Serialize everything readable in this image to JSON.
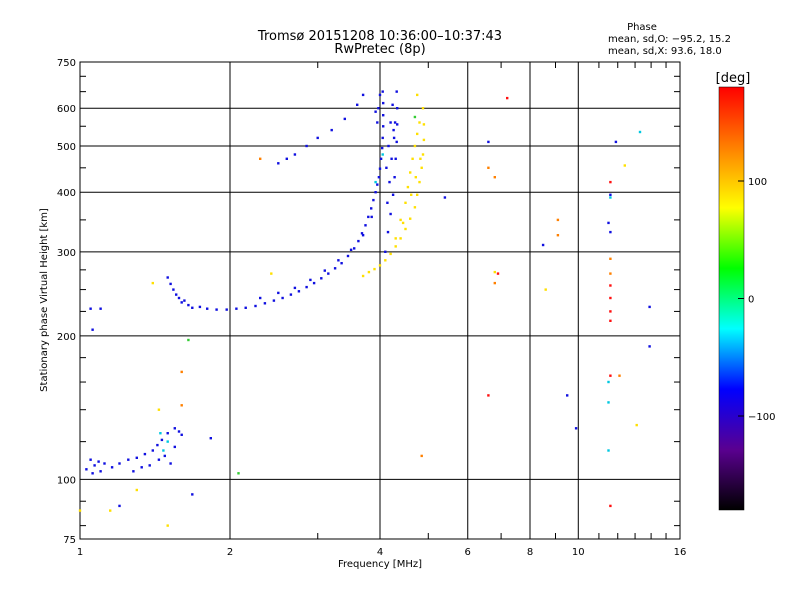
{
  "chart_data": {
    "type": "scatter",
    "title": "Tromsø 20151208 10:36:00–10:37:43",
    "subtitle": "RwPretec (8p)",
    "xlabel": "Frequency [MHz]",
    "ylabel": "Stationary phase Virtual Height [km]",
    "x_scale": "log",
    "y_scale": "log",
    "xlim": [
      1,
      16
    ],
    "ylim": [
      75,
      750
    ],
    "x_ticks": [
      1,
      2,
      4,
      6,
      8,
      10,
      16
    ],
    "x_tick_labels": [
      "1",
      "2",
      "4",
      "6",
      "8",
      "10",
      "16"
    ],
    "y_ticks": [
      75,
      100,
      200,
      300,
      400,
      500,
      600,
      750
    ],
    "y_tick_labels": [
      "75",
      "100",
      "200",
      "300",
      "400",
      "500",
      "600",
      "750"
    ],
    "grid": true,
    "phase_stats": {
      "heading": "Phase",
      "line_o": "mean, sd,O: −95.2, 15.2",
      "line_x": "mean, sd,X:  93.6, 18.0"
    },
    "colorbar": {
      "label": "[deg]",
      "range": [
        -180,
        180
      ],
      "ticks": [
        100,
        0,
        -100
      ],
      "tick_labels": [
        "100",
        "0",
        "−100"
      ],
      "colors": [
        "#000000",
        "#5a0090",
        "#0000ff",
        "#00ffff",
        "#00ff00",
        "#ffff00",
        "#ff8000",
        "#ff0000"
      ]
    },
    "series": [
      {
        "color": "#1010e0",
        "points": [
          [
            1.03,
            105
          ],
          [
            1.05,
            110
          ],
          [
            1.07,
            107
          ],
          [
            1.09,
            109
          ],
          [
            1.12,
            108
          ],
          [
            1.16,
            106
          ],
          [
            1.2,
            108
          ],
          [
            1.25,
            110
          ],
          [
            1.3,
            111
          ],
          [
            1.35,
            113
          ],
          [
            1.4,
            115
          ],
          [
            1.43,
            118
          ],
          [
            1.46,
            121
          ],
          [
            1.5,
            125
          ],
          [
            1.55,
            128
          ],
          [
            1.58,
            126
          ],
          [
            1.52,
            108
          ],
          [
            1.48,
            112
          ],
          [
            1.44,
            110
          ],
          [
            1.38,
            107
          ],
          [
            1.33,
            106
          ],
          [
            1.28,
            104
          ],
          [
            1.55,
            117
          ],
          [
            1.6,
            124
          ],
          [
            1.1,
            104
          ],
          [
            1.06,
            103
          ],
          [
            1.5,
            265
          ],
          [
            1.52,
            257
          ],
          [
            1.54,
            250
          ],
          [
            1.56,
            244
          ],
          [
            1.58,
            240
          ],
          [
            1.6,
            235
          ],
          [
            1.62,
            237
          ],
          [
            1.65,
            232
          ],
          [
            1.68,
            229
          ],
          [
            1.05,
            228
          ],
          [
            1.1,
            228
          ],
          [
            1.06,
            206
          ],
          [
            1.74,
            230
          ],
          [
            1.8,
            228
          ],
          [
            1.88,
            227
          ],
          [
            1.97,
            227
          ],
          [
            2.06,
            228
          ],
          [
            2.15,
            229
          ],
          [
            2.25,
            231
          ],
          [
            2.35,
            234
          ],
          [
            2.45,
            237
          ],
          [
            2.55,
            240
          ],
          [
            2.65,
            244
          ],
          [
            2.75,
            248
          ],
          [
            2.85,
            253
          ],
          [
            2.95,
            258
          ],
          [
            3.05,
            264
          ],
          [
            3.15,
            270
          ],
          [
            3.25,
            277
          ],
          [
            3.35,
            284
          ],
          [
            3.45,
            294
          ],
          [
            3.55,
            305
          ],
          [
            3.62,
            316
          ],
          [
            3.68,
            328
          ],
          [
            3.74,
            341
          ],
          [
            3.79,
            355
          ],
          [
            3.84,
            370
          ],
          [
            3.88,
            385
          ],
          [
            3.92,
            400
          ],
          [
            3.95,
            415
          ],
          [
            3.98,
            430
          ],
          [
            4.0,
            448
          ],
          [
            4.02,
            470
          ],
          [
            4.04,
            495
          ],
          [
            4.05,
            520
          ],
          [
            4.06,
            550
          ],
          [
            4.06,
            580
          ],
          [
            4.06,
            615
          ],
          [
            4.05,
            650
          ],
          [
            2.3,
            240
          ],
          [
            2.5,
            246
          ],
          [
            2.7,
            252
          ],
          [
            2.9,
            262
          ],
          [
            3.1,
            274
          ],
          [
            3.3,
            288
          ],
          [
            3.5,
            303
          ],
          [
            3.7,
            325
          ],
          [
            3.85,
            355
          ],
          [
            4.1,
            300
          ],
          [
            4.15,
            330
          ],
          [
            4.2,
            360
          ],
          [
            4.25,
            395
          ],
          [
            4.28,
            430
          ],
          [
            4.3,
            470
          ],
          [
            4.32,
            510
          ],
          [
            4.33,
            555
          ],
          [
            4.33,
            600
          ],
          [
            4.32,
            650
          ],
          [
            4.12,
            450
          ],
          [
            4.16,
            500
          ],
          [
            4.2,
            560
          ],
          [
            4.24,
            610
          ],
          [
            4.27,
            520
          ],
          [
            4.29,
            560
          ],
          [
            4.18,
            420
          ],
          [
            4.22,
            470
          ],
          [
            4.26,
            540
          ],
          [
            4.14,
            380
          ],
          [
            3.92,
            590
          ],
          [
            3.97,
            600
          ],
          [
            4.0,
            640
          ],
          [
            3.95,
            560
          ],
          [
            2.5,
            460
          ],
          [
            2.6,
            470
          ],
          [
            2.7,
            480
          ],
          [
            2.85,
            500
          ],
          [
            3.0,
            520
          ],
          [
            3.2,
            540
          ],
          [
            3.4,
            570
          ],
          [
            3.6,
            610
          ],
          [
            3.7,
            640
          ],
          [
            6.6,
            510
          ],
          [
            11.9,
            510
          ],
          [
            11.6,
            395
          ],
          [
            11.5,
            345
          ],
          [
            11.6,
            330
          ],
          [
            8.5,
            310
          ],
          [
            9.5,
            150
          ],
          [
            9.9,
            128
          ],
          [
            13.9,
            230
          ],
          [
            13.9,
            190
          ],
          [
            5.4,
            390
          ],
          [
            1.83,
            122
          ],
          [
            1.68,
            93
          ],
          [
            1.2,
            88
          ]
        ]
      },
      {
        "color": "#00c8e0",
        "points": [
          [
            1.45,
            125
          ],
          [
            1.5,
            120
          ],
          [
            1.47,
            115
          ],
          [
            11.5,
            145
          ],
          [
            11.5,
            115
          ],
          [
            11.5,
            160
          ],
          [
            3.92,
            420
          ],
          [
            4.05,
            480
          ],
          [
            13.3,
            535
          ],
          [
            11.6,
            390
          ]
        ]
      },
      {
        "color": "#33cc33",
        "points": [
          [
            1.65,
            196
          ],
          [
            2.08,
            103
          ],
          [
            4.7,
            575
          ]
        ]
      },
      {
        "color": "#ffe000",
        "points": [
          [
            3.7,
            267
          ],
          [
            3.8,
            272
          ],
          [
            3.9,
            276
          ],
          [
            4.0,
            281
          ],
          [
            4.1,
            288
          ],
          [
            4.2,
            297
          ],
          [
            4.3,
            308
          ],
          [
            4.4,
            320
          ],
          [
            4.5,
            335
          ],
          [
            4.6,
            352
          ],
          [
            4.7,
            372
          ],
          [
            4.75,
            395
          ],
          [
            4.8,
            420
          ],
          [
            4.85,
            450
          ],
          [
            4.88,
            480
          ],
          [
            4.9,
            515
          ],
          [
            4.9,
            555
          ],
          [
            4.88,
            600
          ],
          [
            4.4,
            350
          ],
          [
            4.5,
            380
          ],
          [
            4.55,
            410
          ],
          [
            4.6,
            440
          ],
          [
            4.65,
            470
          ],
          [
            4.7,
            500
          ],
          [
            4.75,
            530
          ],
          [
            4.8,
            560
          ],
          [
            4.3,
            320
          ],
          [
            4.45,
            345
          ],
          [
            4.62,
            395
          ],
          [
            4.72,
            430
          ],
          [
            4.82,
            470
          ],
          [
            1.4,
            258
          ],
          [
            2.42,
            270
          ],
          [
            4.75,
            640
          ],
          [
            12.4,
            455
          ],
          [
            13.1,
            130
          ],
          [
            1.3,
            95
          ],
          [
            1.0,
            86
          ],
          [
            1.15,
            86
          ],
          [
            1.5,
            80
          ],
          [
            1.44,
            140
          ],
          [
            6.8,
            272
          ],
          [
            8.6,
            250
          ]
        ]
      },
      {
        "color": "#ff8000",
        "points": [
          [
            1.6,
            168
          ],
          [
            1.6,
            143
          ],
          [
            2.3,
            470
          ],
          [
            6.8,
            430
          ],
          [
            6.6,
            450
          ],
          [
            9.1,
            325
          ],
          [
            9.1,
            350
          ],
          [
            11.6,
            290
          ],
          [
            11.6,
            270
          ],
          [
            12.1,
            165
          ],
          [
            6.8,
            258
          ],
          [
            4.85,
            112
          ]
        ]
      },
      {
        "color": "#ff1010",
        "points": [
          [
            7.2,
            630
          ],
          [
            6.6,
            150
          ],
          [
            11.6,
            420
          ],
          [
            11.6,
            255
          ],
          [
            11.6,
            240
          ],
          [
            11.6,
            225
          ],
          [
            11.6,
            215
          ],
          [
            11.6,
            165
          ],
          [
            11.6,
            88
          ],
          [
            6.9,
            270
          ]
        ]
      }
    ]
  }
}
